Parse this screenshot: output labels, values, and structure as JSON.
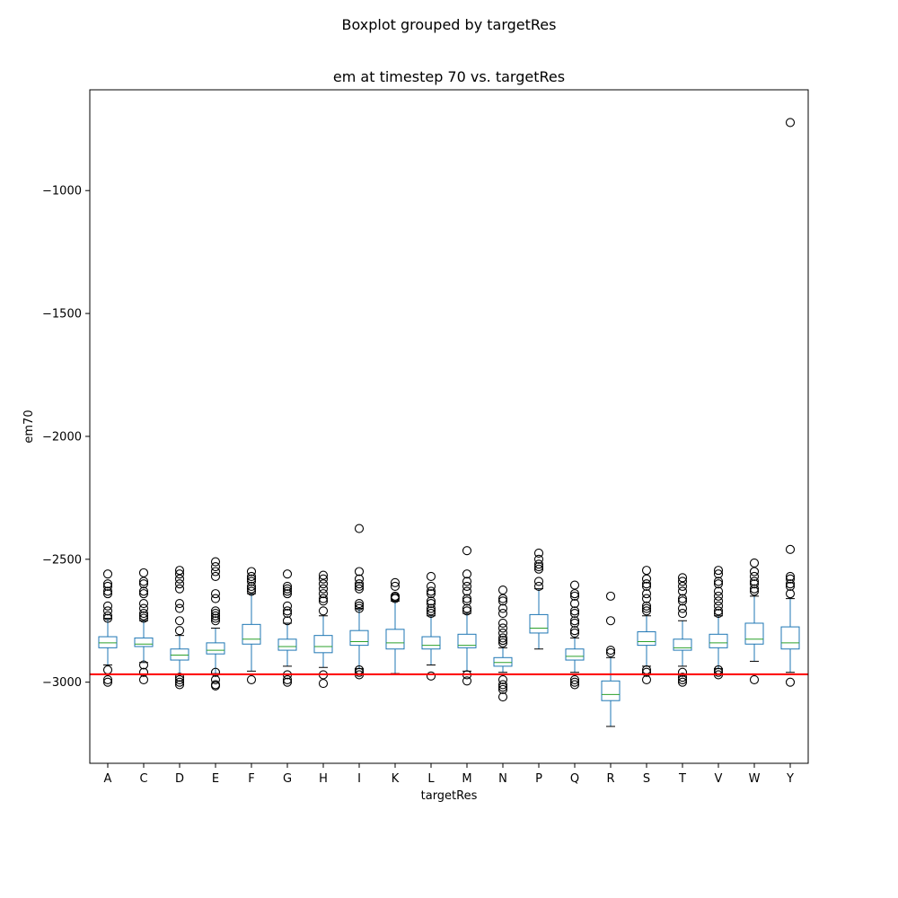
{
  "figure": {
    "suptitle": "Boxplot grouped by targetRes",
    "title": "em at timestep 70 vs. targetRes"
  },
  "chart_data": {
    "type": "box",
    "title": "em at timestep 70 vs. targetRes",
    "xlabel": "targetRes",
    "ylabel": "em70",
    "ylim": [
      -3330,
      -590
    ],
    "yticks": [
      -1000,
      -1500,
      -2000,
      -2500,
      -3000
    ],
    "ytick_labels": [
      "−1000",
      "−1500",
      "−2000",
      "−2500",
      "−3000"
    ],
    "grid": false,
    "box_color": "#1f77b4",
    "median_color": "#2ca02c",
    "reference_line": {
      "y": -2968,
      "color": "#ff0000"
    },
    "categories": [
      "A",
      "C",
      "D",
      "E",
      "F",
      "G",
      "H",
      "I",
      "K",
      "L",
      "M",
      "N",
      "P",
      "Q",
      "R",
      "S",
      "T",
      "V",
      "W",
      "Y"
    ],
    "boxes": [
      {
        "label": "A",
        "whislo": -2930,
        "q1": -2860,
        "med": -2840,
        "q3": -2815,
        "whishi": -2740,
        "fliers": [
          -2560,
          -2600,
          -2610,
          -2630,
          -2640,
          -2690,
          -2710,
          -2730,
          -2740,
          -2950,
          -2990,
          -3000
        ]
      },
      {
        "label": "C",
        "whislo": -2920,
        "q1": -2855,
        "med": -2845,
        "q3": -2820,
        "whishi": -2750,
        "fliers": [
          -2555,
          -2590,
          -2600,
          -2630,
          -2640,
          -2680,
          -2700,
          -2720,
          -2730,
          -2740,
          -2930,
          -2960,
          -2990
        ]
      },
      {
        "label": "D",
        "whislo": -2970,
        "q1": -2910,
        "med": -2890,
        "q3": -2865,
        "whishi": -2810,
        "fliers": [
          -2545,
          -2560,
          -2580,
          -2600,
          -2620,
          -2680,
          -2700,
          -2750,
          -2790,
          -2980,
          -2990,
          -3000,
          -3010
        ]
      },
      {
        "label": "E",
        "whislo": -2965,
        "q1": -2885,
        "med": -2870,
        "q3": -2840,
        "whishi": -2780,
        "fliers": [
          -2510,
          -2530,
          -2550,
          -2570,
          -2640,
          -2660,
          -2710,
          -2720,
          -2730,
          -2740,
          -2750,
          -2960,
          -2990,
          -3010,
          -3015
        ]
      },
      {
        "label": "F",
        "whislo": -2955,
        "q1": -2845,
        "med": -2825,
        "q3": -2765,
        "whishi": -2640,
        "fliers": [
          -2550,
          -2570,
          -2580,
          -2590,
          -2610,
          -2620,
          -2630,
          -2990
        ]
      },
      {
        "label": "G",
        "whislo": -2935,
        "q1": -2870,
        "med": -2855,
        "q3": -2825,
        "whishi": -2760,
        "fliers": [
          -2560,
          -2610,
          -2620,
          -2630,
          -2640,
          -2690,
          -2710,
          -2720,
          -2750,
          -2970,
          -2990,
          -3000
        ]
      },
      {
        "label": "H",
        "whislo": -2940,
        "q1": -2880,
        "med": -2855,
        "q3": -2810,
        "whishi": -2730,
        "fliers": [
          -2565,
          -2580,
          -2600,
          -2620,
          -2640,
          -2660,
          -2670,
          -2710,
          -2970,
          -3005
        ]
      },
      {
        "label": "I",
        "whislo": -2945,
        "q1": -2850,
        "med": -2835,
        "q3": -2790,
        "whishi": -2700,
        "fliers": [
          -2375,
          -2550,
          -2580,
          -2600,
          -2610,
          -2620,
          -2680,
          -2690,
          -2700,
          -2950,
          -2960,
          -2970
        ]
      },
      {
        "label": "K",
        "whislo": -2965,
        "q1": -2865,
        "med": -2840,
        "q3": -2785,
        "whishi": -2670,
        "fliers": [
          -2595,
          -2610,
          -2650,
          -2655,
          -2660
        ]
      },
      {
        "label": "L",
        "whislo": -2930,
        "q1": -2865,
        "med": -2850,
        "q3": -2815,
        "whishi": -2730,
        "fliers": [
          -2570,
          -2610,
          -2630,
          -2640,
          -2670,
          -2680,
          -2700,
          -2710,
          -2720,
          -2975
        ]
      },
      {
        "label": "M",
        "whislo": -2955,
        "q1": -2860,
        "med": -2850,
        "q3": -2805,
        "whishi": -2720,
        "fliers": [
          -2465,
          -2560,
          -2590,
          -2610,
          -2630,
          -2660,
          -2670,
          -2700,
          -2710,
          -2970,
          -2995
        ]
      },
      {
        "label": "N",
        "whislo": -2960,
        "q1": -2935,
        "med": -2920,
        "q3": -2900,
        "whishi": -2860,
        "fliers": [
          -2625,
          -2660,
          -2670,
          -2700,
          -2720,
          -2760,
          -2780,
          -2800,
          -2820,
          -2830,
          -2840,
          -2990,
          -3010,
          -3020,
          -3030,
          -3060
        ]
      },
      {
        "label": "P",
        "whislo": -2865,
        "q1": -2800,
        "med": -2780,
        "q3": -2725,
        "whishi": -2620,
        "fliers": [
          -2475,
          -2500,
          -2520,
          -2530,
          -2540,
          -2590,
          -2610
        ]
      },
      {
        "label": "Q",
        "whislo": -2960,
        "q1": -2910,
        "med": -2895,
        "q3": -2865,
        "whishi": -2820,
        "fliers": [
          -2605,
          -2640,
          -2650,
          -2680,
          -2710,
          -2720,
          -2750,
          -2760,
          -2790,
          -2800,
          -2990,
          -3000,
          -3010
        ]
      },
      {
        "label": "R",
        "whislo": -3180,
        "q1": -3075,
        "med": -3050,
        "q3": -2995,
        "whishi": -2900,
        "fliers": [
          -2650,
          -2750,
          -2870,
          -2880
        ]
      },
      {
        "label": "S",
        "whislo": -2935,
        "q1": -2850,
        "med": -2835,
        "q3": -2795,
        "whishi": -2730,
        "fliers": [
          -2545,
          -2580,
          -2600,
          -2610,
          -2640,
          -2660,
          -2690,
          -2700,
          -2710,
          -2950,
          -2960,
          -2990
        ]
      },
      {
        "label": "T",
        "whislo": -2935,
        "q1": -2870,
        "med": -2860,
        "q3": -2825,
        "whishi": -2750,
        "fliers": [
          -2575,
          -2590,
          -2610,
          -2630,
          -2660,
          -2670,
          -2700,
          -2720,
          -2960,
          -2980,
          -2990,
          -3000
        ]
      },
      {
        "label": "V",
        "whislo": -2945,
        "q1": -2860,
        "med": -2840,
        "q3": -2805,
        "whishi": -2730,
        "fliers": [
          -2545,
          -2560,
          -2590,
          -2600,
          -2630,
          -2650,
          -2670,
          -2690,
          -2710,
          -2720,
          -2950,
          -2960,
          -2970
        ]
      },
      {
        "label": "W",
        "whislo": -2915,
        "q1": -2845,
        "med": -2825,
        "q3": -2760,
        "whishi": -2650,
        "fliers": [
          -2515,
          -2550,
          -2570,
          -2590,
          -2600,
          -2620,
          -2630,
          -2990
        ]
      },
      {
        "label": "Y",
        "whislo": -2960,
        "q1": -2865,
        "med": -2840,
        "q3": -2775,
        "whishi": -2660,
        "fliers": [
          -723,
          -2460,
          -2570,
          -2580,
          -2600,
          -2610,
          -2640,
          -3000
        ]
      }
    ]
  }
}
